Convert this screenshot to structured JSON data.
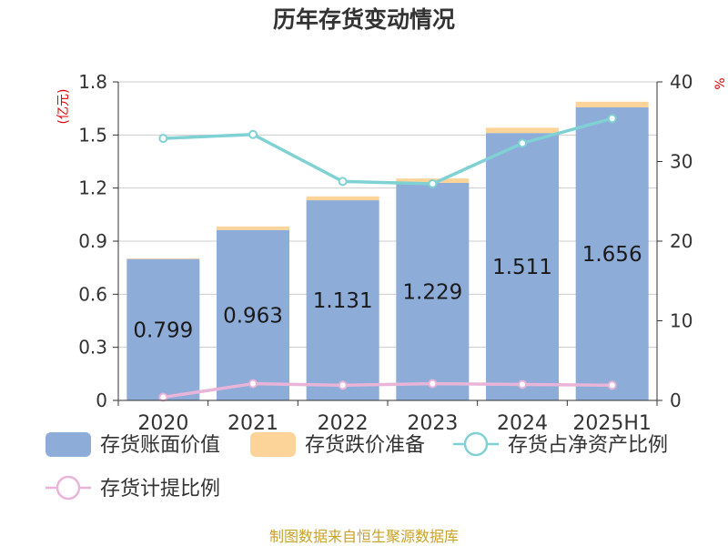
{
  "chart_data": {
    "type": "bar",
    "title": "历年存货变动情况",
    "y_unit_left": "(亿元)",
    "y_unit_right": "%",
    "categories": [
      "2020",
      "2021",
      "2022",
      "2023",
      "2024",
      "2025H1"
    ],
    "ylim_left": [
      0,
      1.8
    ],
    "yticks_left": [
      "0",
      "0.3",
      "0.6",
      "0.9",
      "1.2",
      "1.5",
      "1.8"
    ],
    "ylim_right": [
      0,
      40
    ],
    "yticks_right": [
      "0",
      "10",
      "20",
      "30",
      "40"
    ],
    "grid": true,
    "legend_position": "bottom",
    "series": [
      {
        "name": "存货账面价值",
        "type": "bar",
        "stack": "inventory",
        "color": "#8eacd8",
        "values": [
          0.799,
          0.963,
          1.131,
          1.229,
          1.511,
          1.656
        ],
        "labels": [
          "0.799",
          "0.963",
          "1.131",
          "1.229",
          "1.511",
          "1.656"
        ]
      },
      {
        "name": "存货跌价准备",
        "type": "bar",
        "stack": "inventory",
        "color": "#fcd49a",
        "values": [
          0.004,
          0.02,
          0.022,
          0.025,
          0.03,
          0.032
        ]
      },
      {
        "name": "存货占净资产比例",
        "type": "line",
        "axis": "right",
        "color": "#7fd1d4",
        "values": [
          32.9,
          33.4,
          27.5,
          27.2,
          32.3,
          35.4
        ]
      },
      {
        "name": "存货计提比例",
        "type": "line",
        "axis": "right",
        "color": "#e8b4d8",
        "values": [
          0.4,
          2.1,
          1.9,
          2.1,
          2.0,
          1.9
        ]
      }
    ]
  },
  "source": "制图数据来自恒生聚源数据库"
}
